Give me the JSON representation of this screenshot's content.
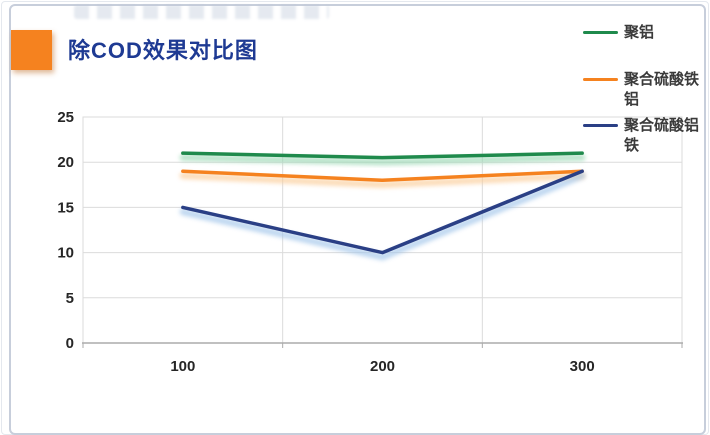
{
  "header": {
    "title": "除COD效果对比图",
    "title_color": "#1E3A93",
    "accent_color": "#F5821F"
  },
  "chart_data": {
    "type": "line",
    "title": "除COD效果对比图",
    "categories": [
      "100",
      "200",
      "300"
    ],
    "series": [
      {
        "name": "聚铝",
        "color": "#1F8A4C",
        "glow_color": "#9AD8B4",
        "values": [
          21,
          20.5,
          21
        ]
      },
      {
        "name": "聚合硫酸铁铝",
        "color": "#F5821F",
        "glow_color": "#FBCD9A",
        "values": [
          19,
          18,
          19
        ]
      },
      {
        "name": "聚合硫酸铝铁",
        "color": "#2A3F85",
        "glow_color": "#A3C6EA",
        "values": [
          15,
          10,
          19
        ]
      }
    ],
    "ylim": [
      0,
      25
    ],
    "yticks": [
      0,
      5,
      10,
      15,
      20,
      25
    ],
    "grid": true,
    "legend_position": "right",
    "axis_label_color": "#262626",
    "gridline_color": "#DBDBDB",
    "axis_line_color": "#ABABAB"
  }
}
